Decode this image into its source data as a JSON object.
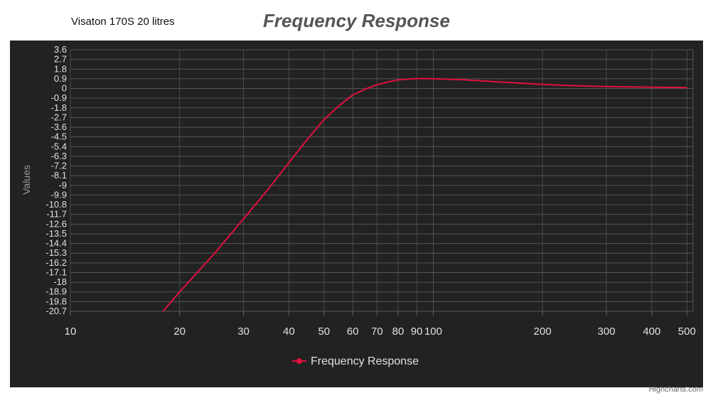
{
  "header": {
    "caption": "Visaton 170S 20 litres",
    "title": "Frequency Response"
  },
  "credits": "Highcharts.com",
  "chart_data": {
    "type": "line",
    "title": "Frequency Response",
    "ylabel": "Values",
    "xlabel": "",
    "x_scale": "log",
    "xlim": [
      10,
      520
    ],
    "ylim": [
      -20.7,
      3.6
    ],
    "x_ticks": [
      10,
      20,
      30,
      40,
      50,
      60,
      70,
      80,
      90,
      100,
      200,
      300,
      400,
      500
    ],
    "y_ticks": [
      3.6,
      2.7,
      1.8,
      0.9,
      0,
      -0.9,
      -1.8,
      -2.7,
      -3.6,
      -4.5,
      -5.4,
      -6.3,
      -7.2,
      -8.1,
      -9,
      -9.9,
      -10.8,
      -11.7,
      -12.6,
      -13.5,
      -14.4,
      -15.3,
      -16.2,
      -17.1,
      -18,
      -18.9,
      -19.8,
      -20.7
    ],
    "grid": true,
    "legend_position": "bottom-center",
    "series": [
      {
        "name": "Frequency Response",
        "color": "#e0103f",
        "x": [
          18,
          20,
          25,
          30,
          35,
          40,
          45,
          50,
          55,
          60,
          65,
          70,
          75,
          80,
          85,
          90,
          95,
          100,
          120,
          150,
          200,
          250,
          300,
          400,
          500
        ],
        "y": [
          -20.7,
          -18.9,
          -15.3,
          -12.1,
          -9.4,
          -6.9,
          -4.7,
          -2.9,
          -1.6,
          -0.6,
          -0.05,
          0.35,
          0.6,
          0.8,
          0.88,
          0.92,
          0.92,
          0.9,
          0.82,
          0.62,
          0.38,
          0.25,
          0.18,
          0.12,
          0.08
        ]
      }
    ]
  }
}
